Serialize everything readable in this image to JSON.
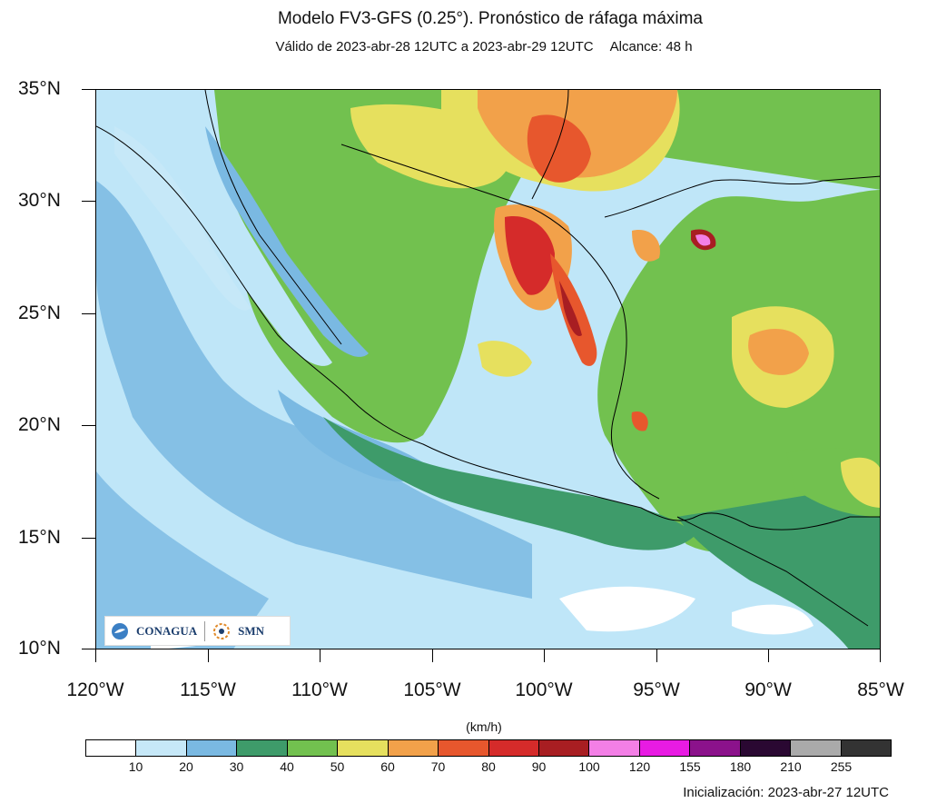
{
  "title": "Modelo FV3-GFS (0.25°). Pronóstico de ráfaga máxima",
  "subtitle": {
    "valid": "Válido de 2023-abr-28 12UTC a 2023-abr-29 12UTC",
    "range": "Alcance: 48 h"
  },
  "lat_labels": [
    "35°N",
    "30°N",
    "25°N",
    "20°N",
    "15°N",
    "10°N"
  ],
  "lon_labels": [
    "120°W",
    "115°W",
    "110°W",
    "105°W",
    "100°W",
    "95°W",
    "90°W",
    "85°W"
  ],
  "colorbar": {
    "title": "(km/h)",
    "labels": [
      "10",
      "20",
      "30",
      "40",
      "50",
      "60",
      "70",
      "80",
      "90",
      "100",
      "120",
      "155",
      "180",
      "210",
      "255"
    ],
    "colors": [
      "#ffffff",
      "#c6e8f8",
      "#7ab9e2",
      "#3e9b6a",
      "#72c14f",
      "#e6e05e",
      "#f2a14a",
      "#e7572d",
      "#d52b2a",
      "#a81e22",
      "#f37fe6",
      "#e81be3",
      "#8b128b",
      "#2a0832",
      "#aaaaaa",
      "#333333"
    ]
  },
  "initialization": "Inicialización: 2023-abr-27 12UTC",
  "logos": {
    "conagua": "CONAGUA",
    "smn": "SMN"
  }
}
